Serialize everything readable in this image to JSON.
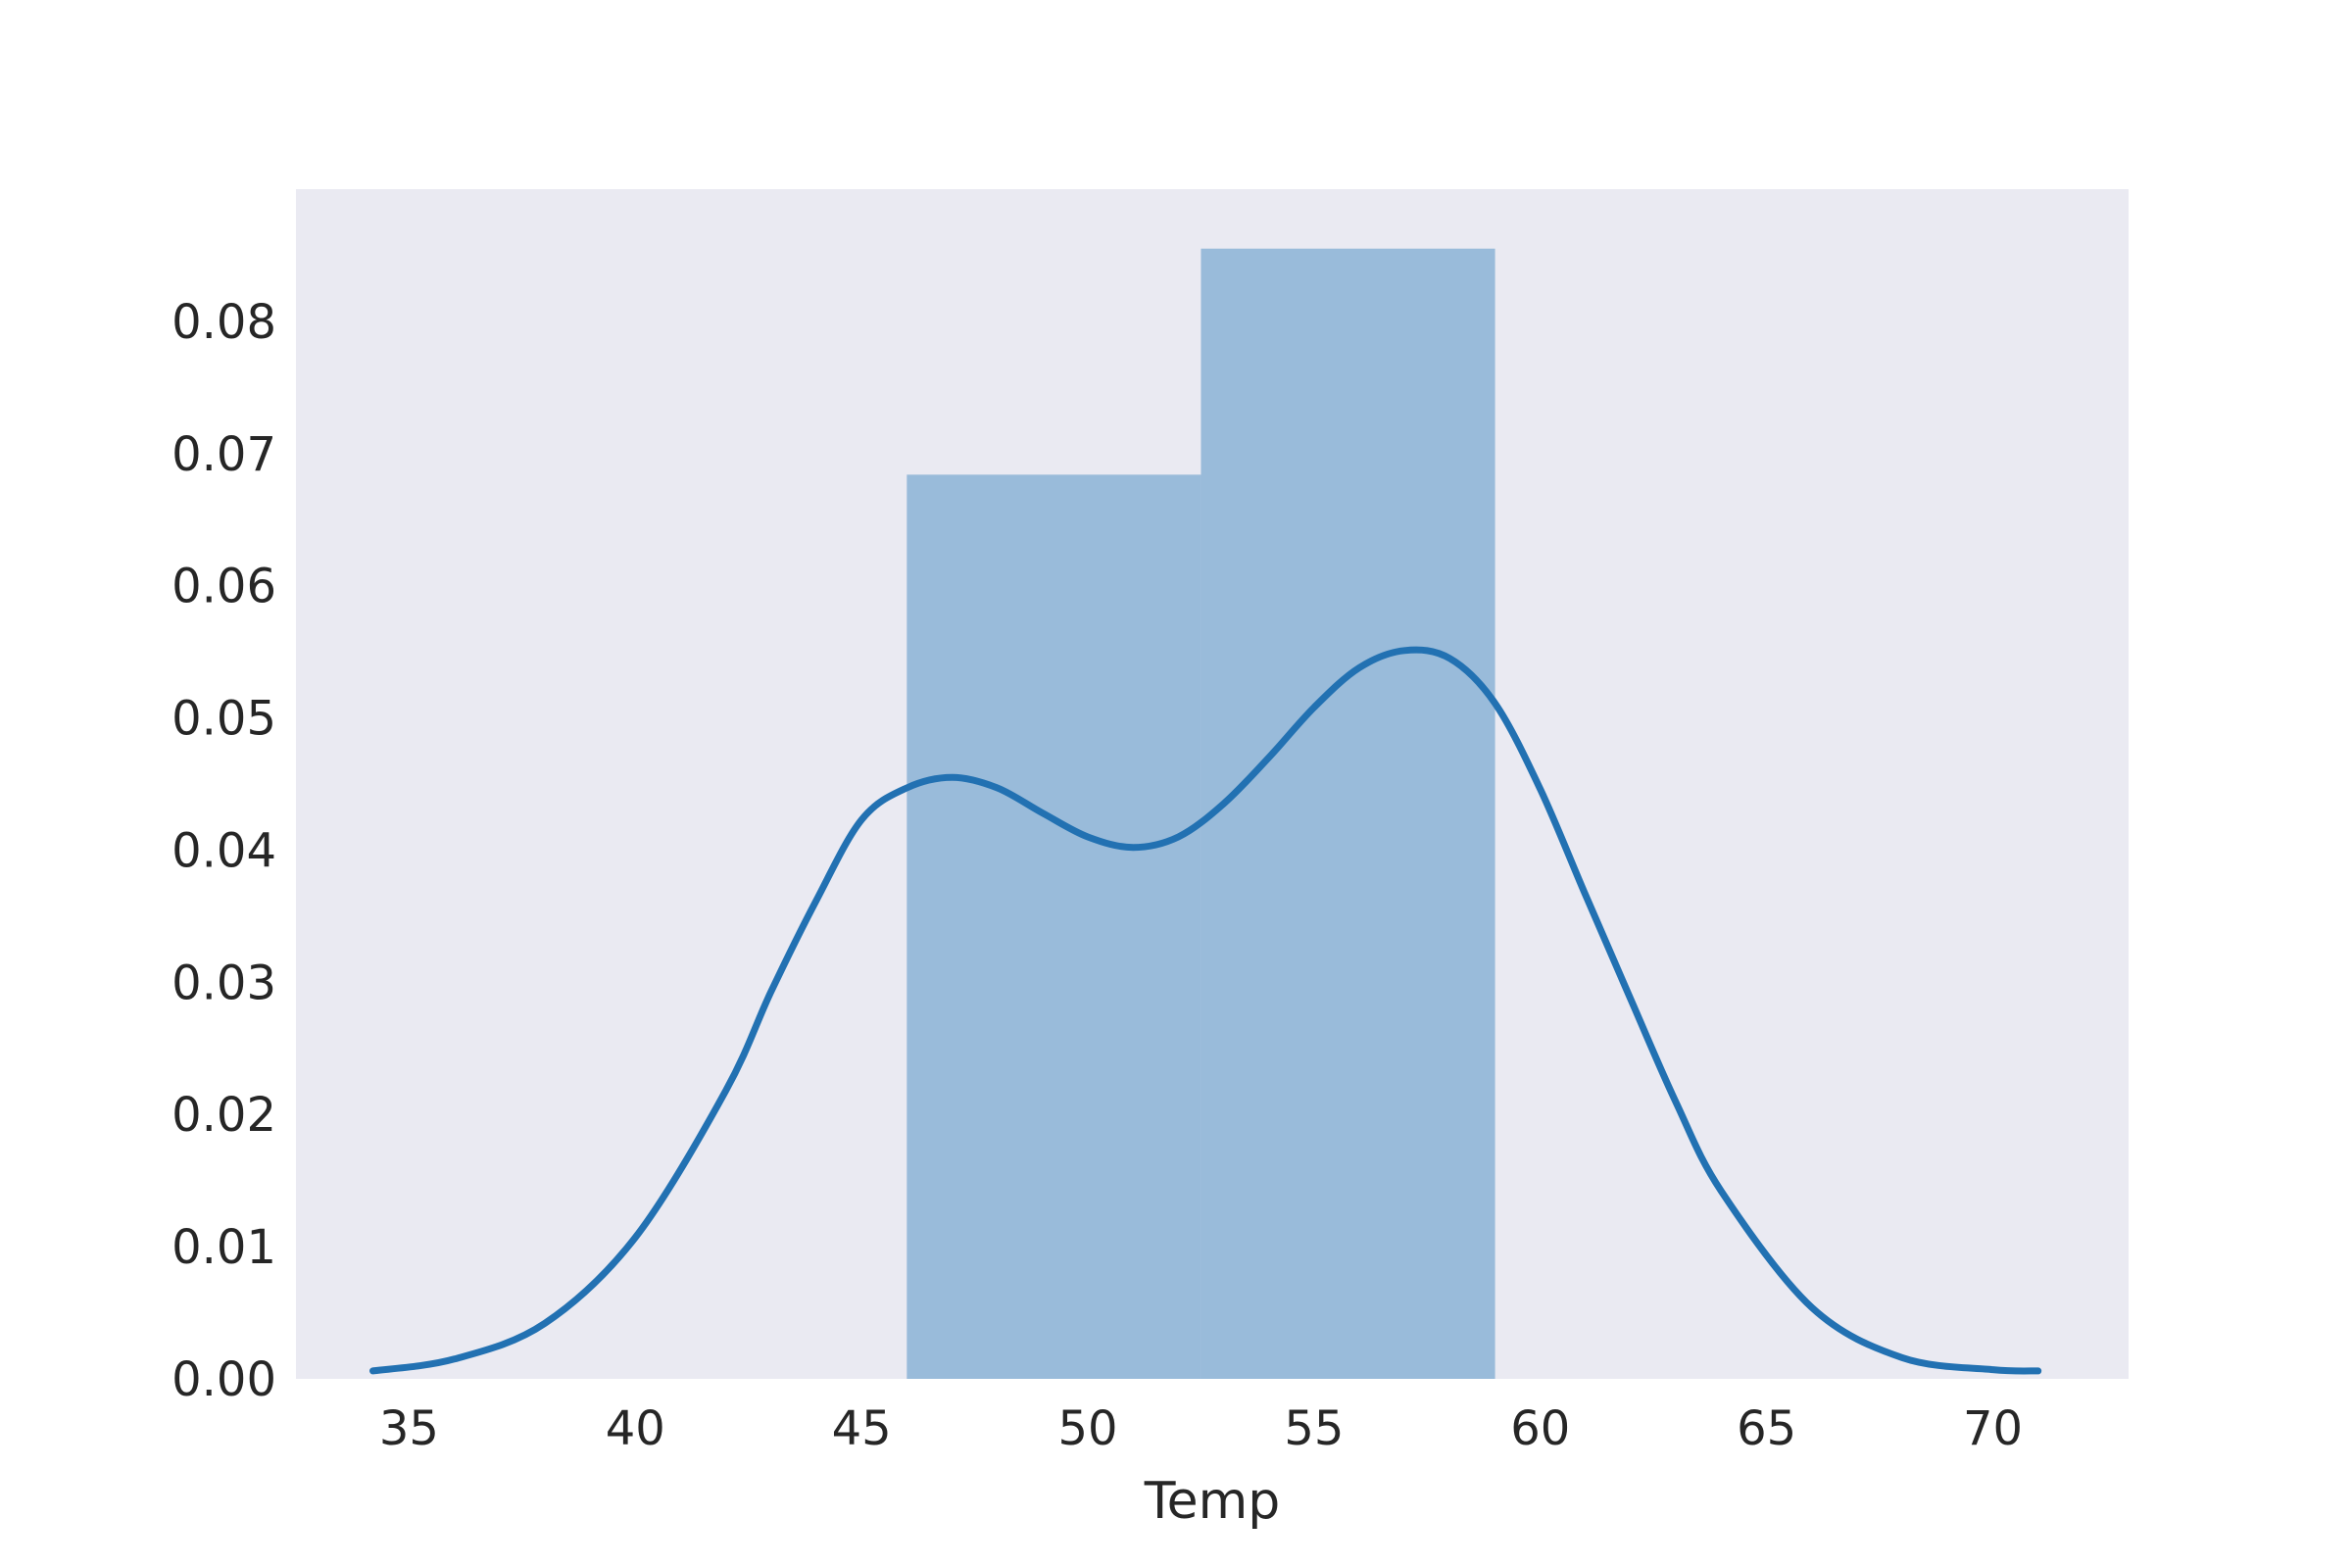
{
  "chart_data": {
    "type": "histogram",
    "title": "",
    "xlabel": "Temp",
    "ylabel": "",
    "xlim": [
      32.5,
      73.0
    ],
    "ylim": [
      0.0,
      0.09
    ],
    "x_ticks": [
      35,
      40,
      45,
      50,
      55,
      60,
      65,
      70
    ],
    "x_tick_labels": [
      "35",
      "40",
      "45",
      "50",
      "55",
      "60",
      "65",
      "70"
    ],
    "y_ticks": [
      0.0,
      0.01,
      0.02,
      0.03,
      0.04,
      0.05,
      0.06,
      0.07,
      0.08
    ],
    "y_tick_labels": [
      "0.00",
      "0.01",
      "0.02",
      "0.03",
      "0.04",
      "0.05",
      "0.06",
      "0.07",
      "0.08"
    ],
    "grid": false,
    "background": "#eaeaf2",
    "bins": [
      {
        "x0": 46.0,
        "x1": 52.5,
        "density": 0.0684
      },
      {
        "x0": 52.5,
        "x1": 59.0,
        "density": 0.0855
      }
    ],
    "bar_color": "#99bbda",
    "kde": {
      "color": "#2271b2",
      "x": [
        34.2,
        36,
        38,
        40,
        42,
        43,
        44,
        45,
        46,
        47,
        48,
        49,
        50,
        51,
        52,
        53,
        54,
        55,
        56,
        57,
        58,
        59,
        60,
        61,
        62,
        63,
        64,
        66,
        68,
        70,
        71
      ],
      "y": [
        0.0006,
        0.0015,
        0.0042,
        0.0107,
        0.0218,
        0.0293,
        0.0362,
        0.0423,
        0.0447,
        0.0455,
        0.0447,
        0.0428,
        0.041,
        0.0402,
        0.041,
        0.0435,
        0.047,
        0.0508,
        0.0538,
        0.0551,
        0.0545,
        0.0511,
        0.0446,
        0.0366,
        0.0287,
        0.0209,
        0.0142,
        0.0054,
        0.0016,
        0.0007,
        0.0006
      ]
    }
  }
}
